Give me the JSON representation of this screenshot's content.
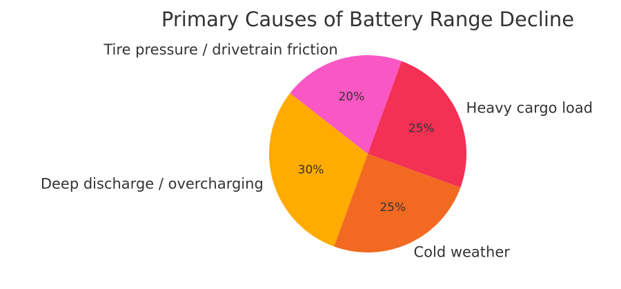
{
  "chart_data": {
    "type": "pie",
    "title": "Primary Causes of Battery Range Decline",
    "categories": [
      "Heavy cargo load",
      "Cold weather",
      "Deep discharge / overcharging",
      "Tire pressure / drivetrain friction"
    ],
    "values": [
      25,
      25,
      30,
      20
    ],
    "value_labels": [
      "25%",
      "25%",
      "30%",
      "20%"
    ],
    "colors": [
      "#f43055",
      "#f26a22",
      "#ffab00",
      "#f957c4"
    ],
    "start_angle_deg": 70,
    "direction": "clockwise"
  }
}
